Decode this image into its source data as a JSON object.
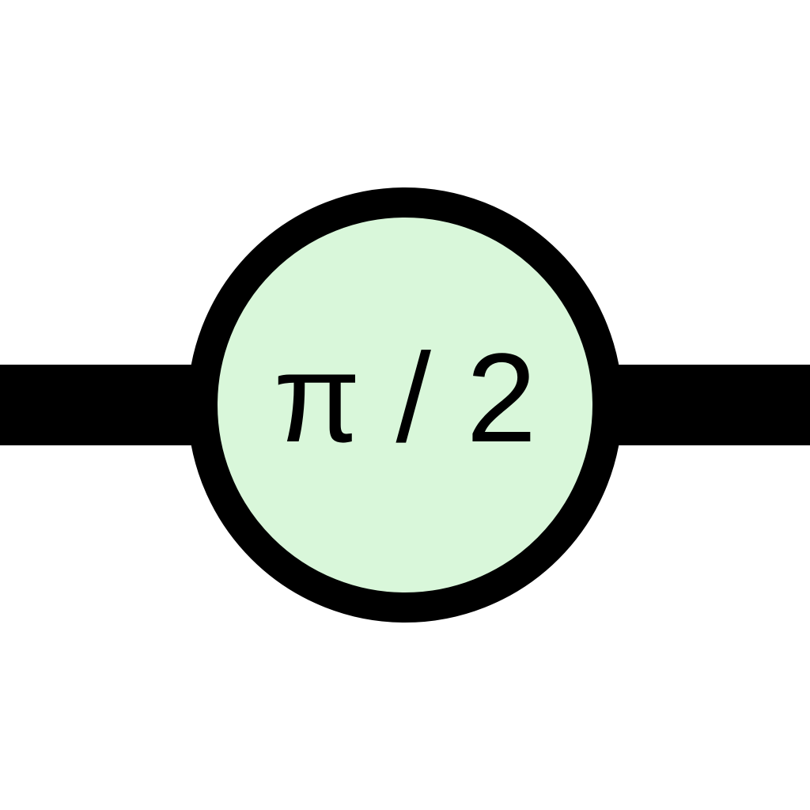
{
  "node": {
    "label": "π / 2"
  },
  "colors": {
    "wire": "#000000",
    "node_fill": "#d9f7da",
    "node_border": "#000000",
    "label": "#000000",
    "background": "#ffffff"
  }
}
